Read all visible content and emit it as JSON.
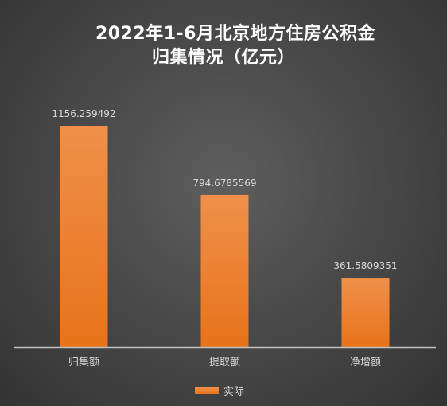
{
  "chart_data": {
    "type": "bar",
    "title_line1": "2022年1-6月北京地方住房公积金",
    "title_line2": "归集情况（亿元）",
    "categories": [
      "归集额",
      "提取额",
      "净增额"
    ],
    "series": [
      {
        "name": "实际",
        "values": [
          1156.259492,
          794.6785569,
          361.5809351
        ],
        "value_labels": [
          "1156.259492",
          "794.6785569",
          "361.5809351"
        ]
      }
    ],
    "ylim": [
      0,
      1156.259492
    ],
    "grid": false,
    "legend_position": "bottom",
    "colors": {
      "bar_top": "#f0904a",
      "bar_bottom": "#e8731a",
      "axis": "#bfbfbf",
      "text": "#d9d9d9",
      "title": "#ffffff"
    }
  }
}
